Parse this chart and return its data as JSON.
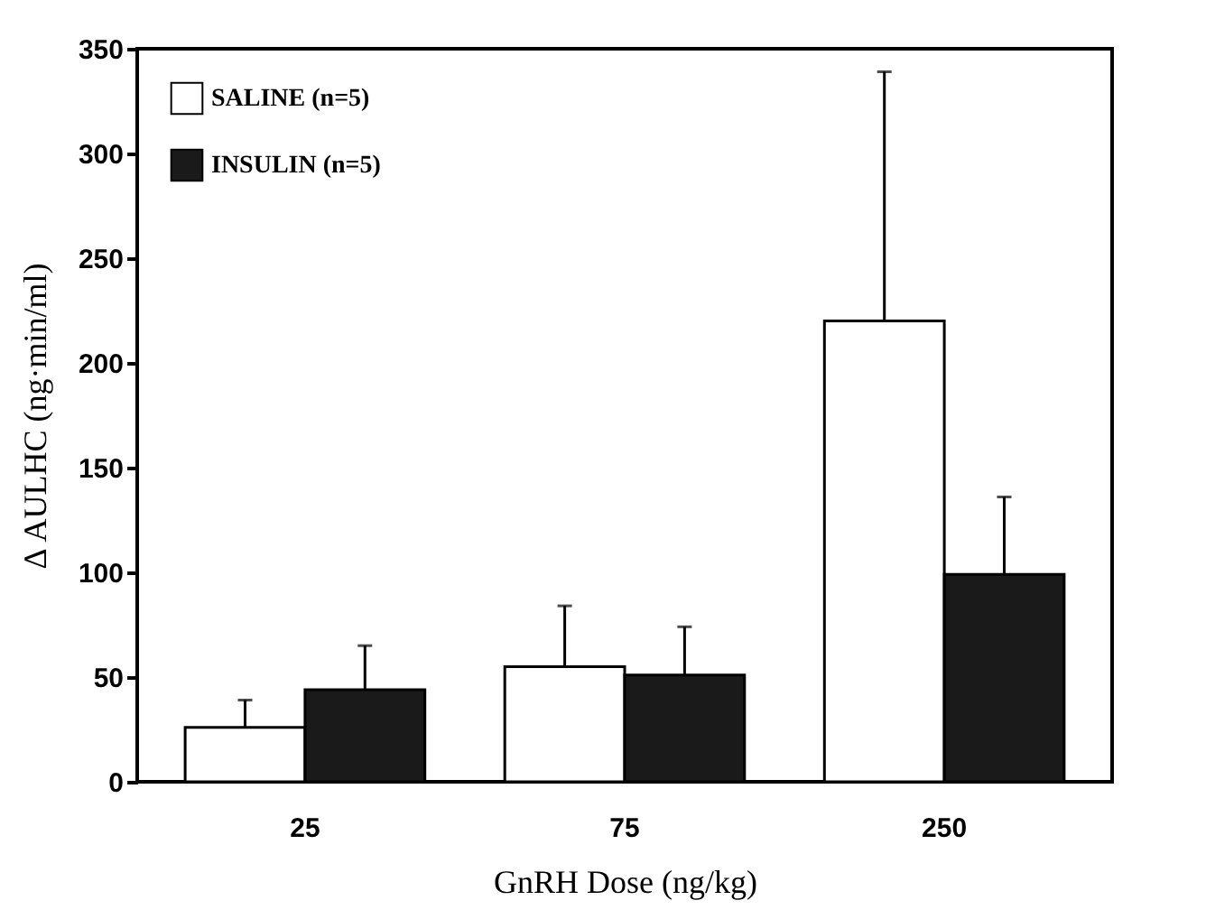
{
  "chart_data": {
    "type": "bar",
    "xlabel": "GnRH Dose (ng/kg)",
    "ylabel": "Δ AULHC (ng·min/ml)",
    "categories": [
      "25",
      "75",
      "250"
    ],
    "series": [
      {
        "name": "SALINE (n=5)",
        "color": "#ffffff",
        "values": [
          26,
          55,
          220
        ],
        "errors": [
          [
            26,
            39
          ],
          [
            55,
            84
          ],
          [
            220,
            339
          ]
        ]
      },
      {
        "name": "INSULIN (n=5)",
        "color": "#1a1a1a",
        "values": [
          44,
          51,
          99
        ],
        "errors": [
          [
            44,
            65
          ],
          [
            51,
            74
          ],
          [
            99,
            136
          ]
        ]
      }
    ],
    "ylim": [
      0,
      350
    ],
    "yticks": [
      0,
      50,
      100,
      150,
      200,
      250,
      300,
      350
    ],
    "grid": false,
    "legend": "top left"
  }
}
